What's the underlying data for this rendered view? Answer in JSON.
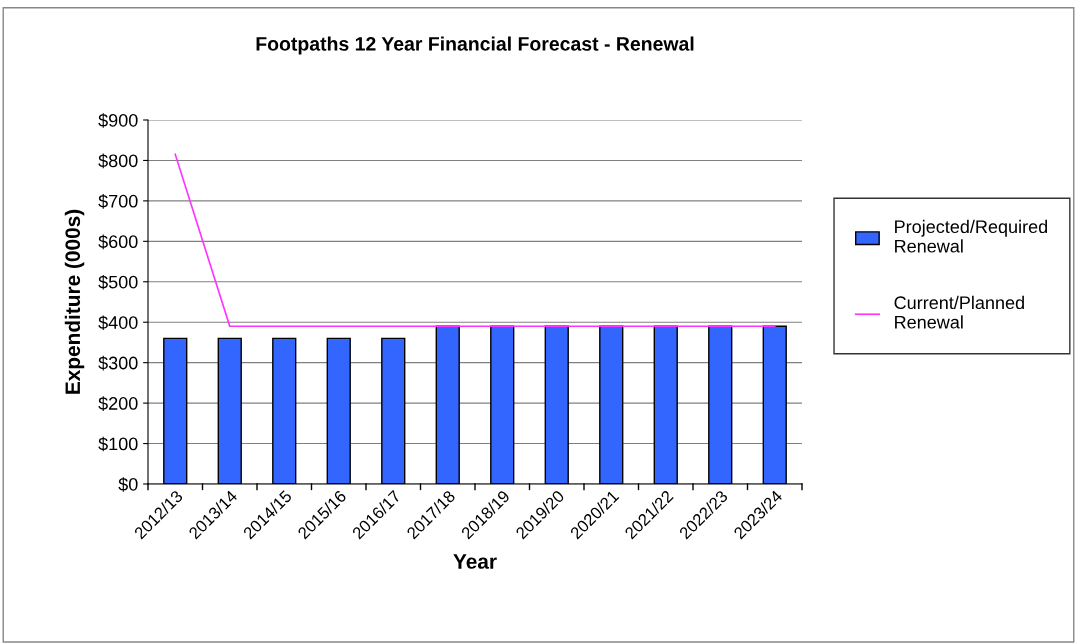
{
  "chart_data": {
    "type": "bar",
    "title": "Footpaths 12 Year Financial Forecast - Renewal",
    "xlabel": "Year",
    "ylabel": "Expenditure (000s)",
    "categories": [
      "2012/13",
      "2013/14",
      "2014/15",
      "2015/16",
      "2016/17",
      "2017/18",
      "2018/19",
      "2019/20",
      "2020/21",
      "2021/22",
      "2022/23",
      "2023/24"
    ],
    "series": [
      {
        "name": "Projected/Required Renewal",
        "color": "#3366ff",
        "values": [
          360,
          360,
          360,
          360,
          360,
          390,
          390,
          390,
          390,
          390,
          390,
          390
        ]
      },
      {
        "name": "Current/Planned Renewal",
        "type": "line",
        "color": "#ff33ff",
        "values": [
          815,
          390,
          390,
          390,
          390,
          390,
          390,
          390,
          390,
          390,
          390,
          390
        ]
      }
    ],
    "ylim": [
      0,
      900
    ],
    "yticks": [
      {
        "value": 0,
        "label": "$0"
      },
      {
        "value": 100,
        "label": "$100"
      },
      {
        "value": 200,
        "label": "$200"
      },
      {
        "value": 300,
        "label": "$300"
      },
      {
        "value": 400,
        "label": "$400"
      },
      {
        "value": 500,
        "label": "$500"
      },
      {
        "value": 600,
        "label": "$600"
      },
      {
        "value": 700,
        "label": "$700"
      },
      {
        "value": 800,
        "label": "$800"
      },
      {
        "value": 900,
        "label": "$900"
      }
    ],
    "grid": "y",
    "legend": "right",
    "marker": "none",
    "line_style": "solid"
  }
}
